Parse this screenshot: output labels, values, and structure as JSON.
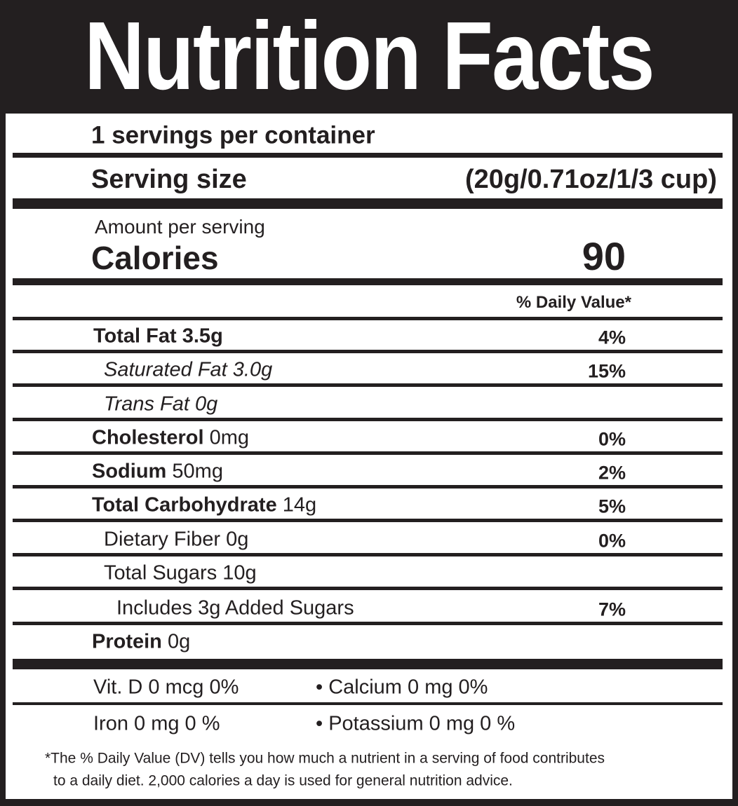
{
  "header": {
    "title": "Nutrition Facts"
  },
  "servings": "1 servings per container",
  "serving_size": {
    "label": "Serving size",
    "value": "(20g/0.71oz/1/3 cup)"
  },
  "calories": {
    "amount_label": "Amount per serving",
    "label": "Calories",
    "value": "90"
  },
  "daily_value_header": "% Daily Value*",
  "nutrients": [
    {
      "name": "Total Fat",
      "amount": "3.5g",
      "dv": "4%"
    },
    {
      "name": "Saturated Fat",
      "amount": "3.0g",
      "dv": "15%"
    },
    {
      "name": "Trans Fat",
      "amount": "0g"
    },
    {
      "name": "Cholesterol",
      "amount": "0mg",
      "dv": "0%"
    },
    {
      "name": "Sodium",
      "amount": "50mg",
      "dv": "2%"
    },
    {
      "name": "Total Carbohydrate",
      "amount": "14g",
      "dv": "5%"
    },
    {
      "name": "Dietary Fiber",
      "amount": "0g",
      "dv": "0%"
    },
    {
      "name": "Total Sugars",
      "amount": "10g"
    },
    {
      "name": "Includes 3g Added Sugars",
      "dv": "7%"
    },
    {
      "name": "Protein",
      "amount": "0g"
    }
  ],
  "minerals": [
    [
      "Vit. D 0 mcg 0%",
      "• Calcium 0 mg 0%"
    ],
    [
      "Iron 0 mg 0 %",
      "• Potassium 0 mg 0 %"
    ]
  ],
  "footnote": [
    "*The % Daily Value (DV) tells you how much a nutrient in a  serving of food contributes",
    "to a daily diet. 2,000 calories a day is used for general nutrition advice."
  ]
}
